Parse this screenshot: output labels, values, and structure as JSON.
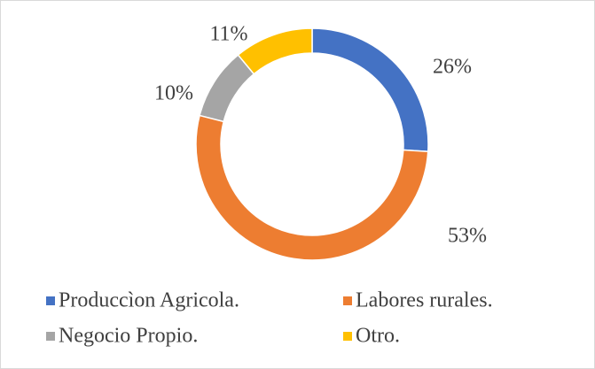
{
  "chart_data": {
    "type": "pie",
    "donut": true,
    "categories": [
      "Produccìon Agricola.",
      "Labores rurales.",
      "Negocio Propio.",
      "Otro."
    ],
    "values": [
      26,
      53,
      10,
      11
    ],
    "value_labels": [
      "26%",
      "53%",
      "10%",
      "11%"
    ],
    "colors": [
      "#4472c4",
      "#ed7d31",
      "#a5a5a5",
      "#ffc000"
    ],
    "legend": "bottom"
  }
}
